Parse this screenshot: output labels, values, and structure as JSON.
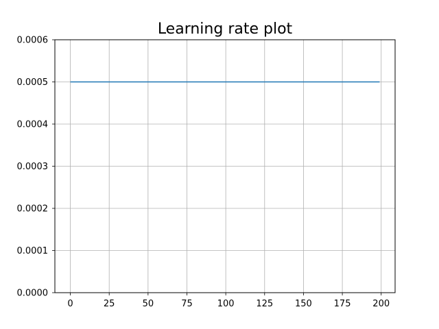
{
  "chart_data": {
    "type": "line",
    "title": "Learning rate plot",
    "xlabel": "",
    "ylabel": "",
    "xlim": [
      -9.95,
      208.95
    ],
    "ylim": [
      0,
      0.0006
    ],
    "grid": true,
    "x_ticks": [
      0,
      25,
      50,
      75,
      100,
      125,
      150,
      175,
      200
    ],
    "x_tick_labels": [
      "0",
      "25",
      "50",
      "75",
      "100",
      "125",
      "150",
      "175",
      "200"
    ],
    "y_ticks": [
      0,
      0.0001,
      0.0002,
      0.0003,
      0.0004,
      0.0005,
      0.0006
    ],
    "y_tick_labels": [
      "0.0000",
      "0.0001",
      "0.0002",
      "0.0003",
      "0.0004",
      "0.0005",
      "0.0006"
    ],
    "series": [
      {
        "x": [
          0,
          199
        ],
        "y": [
          0.0005,
          0.0005
        ],
        "color": "#1f77b4"
      }
    ]
  },
  "colors": {
    "line": "#1f77b4",
    "grid": "#b0b0b0",
    "axes": "#000000"
  }
}
